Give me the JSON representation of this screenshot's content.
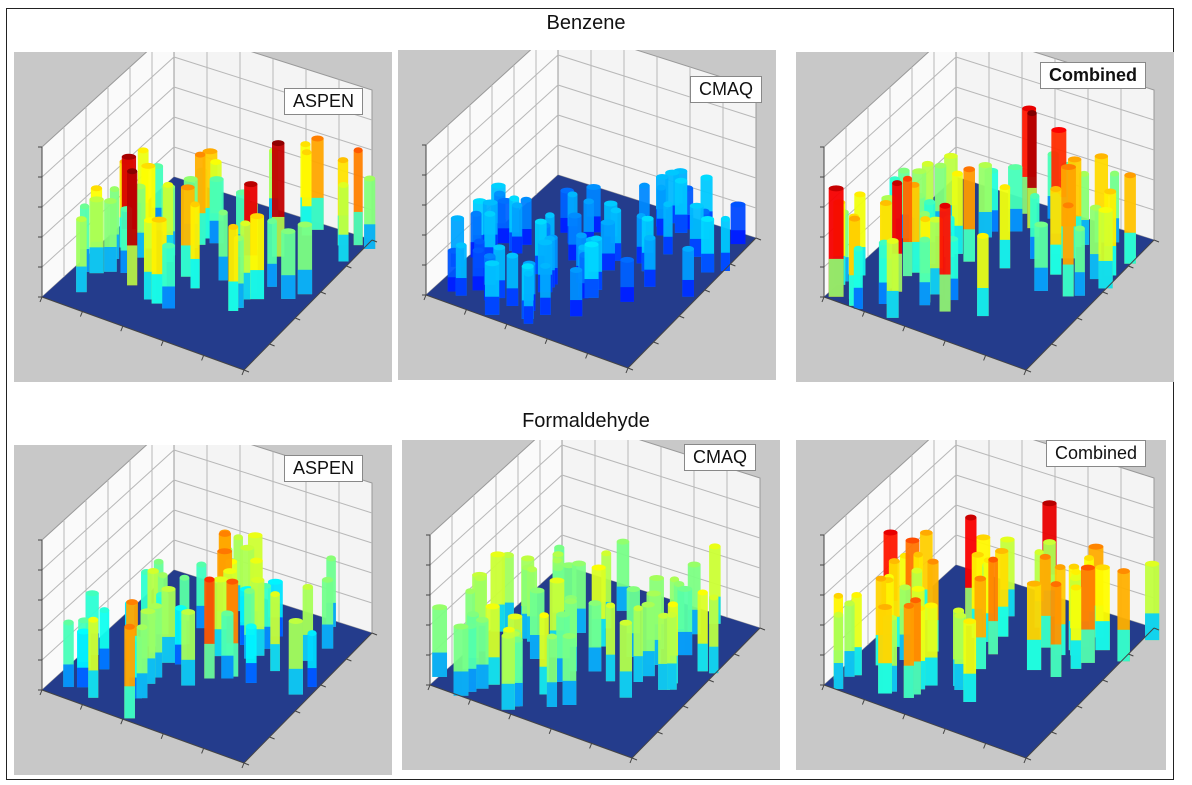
{
  "colors": {
    "panel_bg": "#c8c8c8",
    "floor": "#243c8c",
    "wall": "#f4f4f4",
    "grid": "#b8b8b8"
  },
  "sections": [
    {
      "title": "Benzene",
      "panels": [
        {
          "model": "ASPEN",
          "label_style": "normal"
        },
        {
          "model": "CMAQ",
          "label_style": "normal"
        },
        {
          "model": "Combined",
          "label_style": "bold"
        }
      ]
    },
    {
      "title": "Formaldehyde",
      "panels": [
        {
          "model": "ASPEN",
          "label_style": "normal"
        },
        {
          "model": "CMAQ",
          "label_style": "normal"
        },
        {
          "model": "Combined",
          "label_style": "normal"
        }
      ]
    }
  ],
  "chart_data": [
    {
      "type": "surface3d",
      "pollutant": "Benzene",
      "model": "ASPEN",
      "colormap": "jet",
      "intensity_peak": 1.0,
      "intensity_base": 0.45,
      "spread": "clustered"
    },
    {
      "type": "surface3d",
      "pollutant": "Benzene",
      "model": "CMAQ",
      "colormap": "jet",
      "intensity_peak": 0.3,
      "intensity_base": 0.28,
      "spread": "smooth"
    },
    {
      "type": "surface3d",
      "pollutant": "Benzene",
      "model": "Combined",
      "colormap": "jet",
      "intensity_peak": 1.0,
      "intensity_base": 0.4,
      "spread": "clustered"
    },
    {
      "type": "surface3d",
      "pollutant": "Formaldehyde",
      "model": "ASPEN",
      "colormap": "jet",
      "intensity_peak": 0.85,
      "intensity_base": 0.35,
      "spread": "clustered"
    },
    {
      "type": "surface3d",
      "pollutant": "Formaldehyde",
      "model": "CMAQ",
      "colormap": "jet",
      "intensity_peak": 0.75,
      "intensity_base": 0.55,
      "spread": "smooth"
    },
    {
      "type": "surface3d",
      "pollutant": "Formaldehyde",
      "model": "Combined",
      "colormap": "jet",
      "intensity_peak": 1.0,
      "intensity_base": 0.55,
      "spread": "clustered"
    }
  ]
}
